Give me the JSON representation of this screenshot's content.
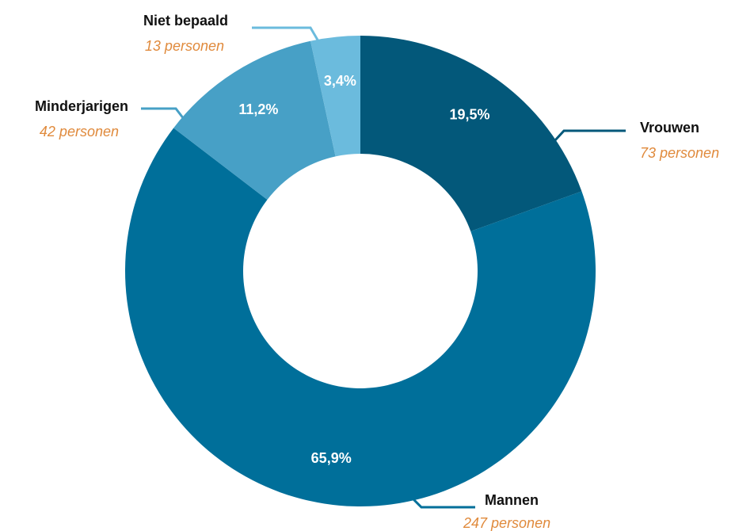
{
  "chart_data": {
    "type": "donut",
    "categories": [
      "Vrouwen",
      "Mannen",
      "Minderjarigen",
      "Niet bepaald"
    ],
    "values": [
      19.5,
      65.9,
      11.2,
      3.4
    ],
    "value_labels": [
      "19,5%",
      "65,9%",
      "11,2%",
      "3,4%"
    ],
    "count_labels": [
      "73 personen",
      "247 personen",
      "42 personen",
      "13 personen"
    ],
    "colors": [
      "#03587a",
      "#006f9a",
      "#47a0c6",
      "#6bbbdd"
    ]
  }
}
